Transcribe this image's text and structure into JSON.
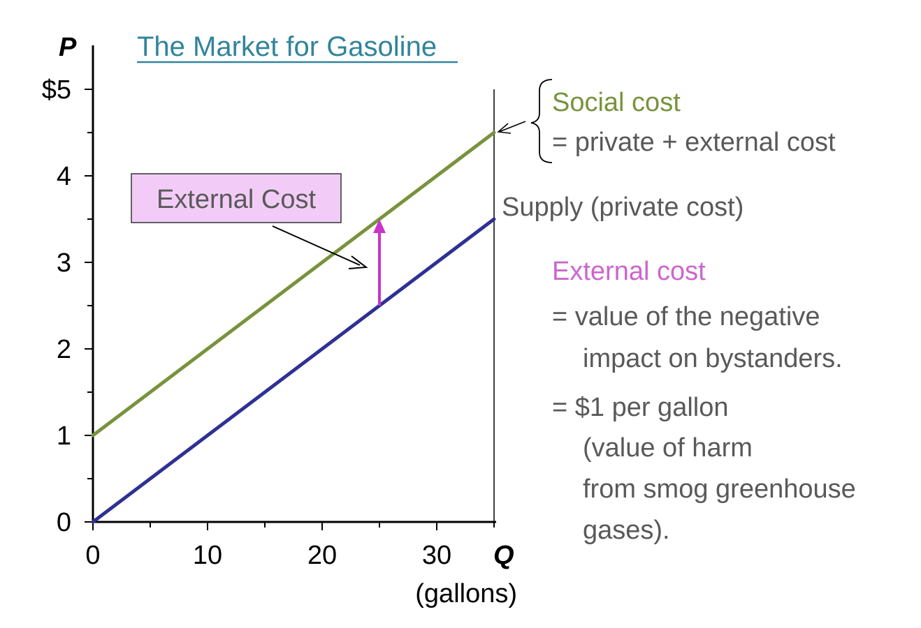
{
  "chart_data": {
    "type": "line",
    "title": "The Market for Gasoline",
    "ylabel": "P",
    "xlabel": "Q",
    "xlabel_unit": "(gallons)",
    "xlim": [
      0,
      35
    ],
    "ylim": [
      0,
      5
    ],
    "x_ticks": [
      "0",
      "10",
      "20",
      "30"
    ],
    "x_tick_values": [
      0,
      10,
      20,
      30
    ],
    "y_ticks": [
      "0",
      "1",
      "2",
      "3",
      "4",
      "$5"
    ],
    "y_tick_values": [
      0,
      1,
      2,
      3,
      4,
      5
    ],
    "grid": false,
    "series": [
      {
        "name": "Social cost",
        "color": "#77933C",
        "x": [
          0,
          35
        ],
        "y": [
          1,
          4.5
        ]
      },
      {
        "name": "Supply (private cost)",
        "color": "#2E3192",
        "x": [
          0,
          35
        ],
        "y": [
          0,
          3.5
        ]
      }
    ],
    "external_cost_arrow": {
      "x": 25,
      "y_from": 2.5,
      "y_to": 3.5,
      "color": "#CC33CC"
    },
    "annotations": {
      "external_cost_box": "External Cost",
      "social_cost_title": "Social cost",
      "social_cost_def": "= private + external cost",
      "supply_label": "Supply (private cost)",
      "external_cost_title": "External cost",
      "external_cost_lines": [
        "= value of the negative",
        "impact on bystanders.",
        "= $1 per gallon",
        "(value of harm",
        "from smog greenhouse",
        "gases)."
      ]
    },
    "colors": {
      "title": "#31849B",
      "social": "#77933C",
      "supply": "#2E3192",
      "external_title": "#CC66CC",
      "box_fill": "#F2CCF7",
      "annotation_text": "#595959"
    }
  }
}
